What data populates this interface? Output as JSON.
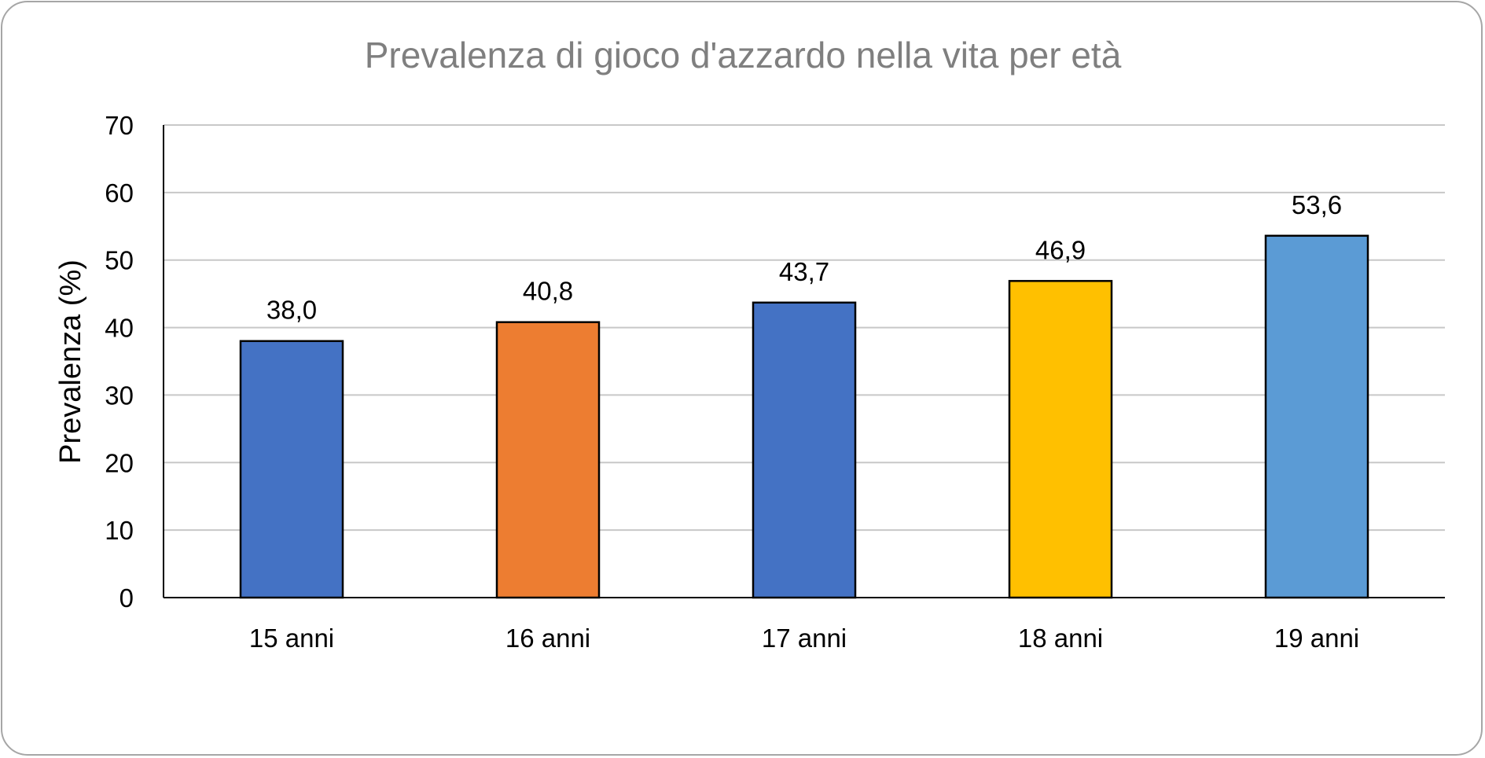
{
  "chart_data": {
    "type": "bar",
    "title": "Prevalenza di gioco d'azzardo nella vita per età",
    "xlabel": "",
    "ylabel": "Prevalenza (%)",
    "categories": [
      "15 anni",
      "16 anni",
      "17 anni",
      "18 anni",
      "19 anni"
    ],
    "values": [
      38.0,
      40.8,
      43.7,
      46.9,
      53.6
    ],
    "data_labels": [
      "38,0",
      "40,8",
      "43,7",
      "46,9",
      "53,6"
    ],
    "bar_colors": [
      "#4472c4",
      "#ed7d31",
      "#4472c4",
      "#ffc000",
      "#5b9bd5"
    ],
    "ylim": [
      0,
      70
    ],
    "yticks": [
      0,
      10,
      20,
      30,
      40,
      50,
      60,
      70
    ],
    "grid": true,
    "legend": "none"
  }
}
